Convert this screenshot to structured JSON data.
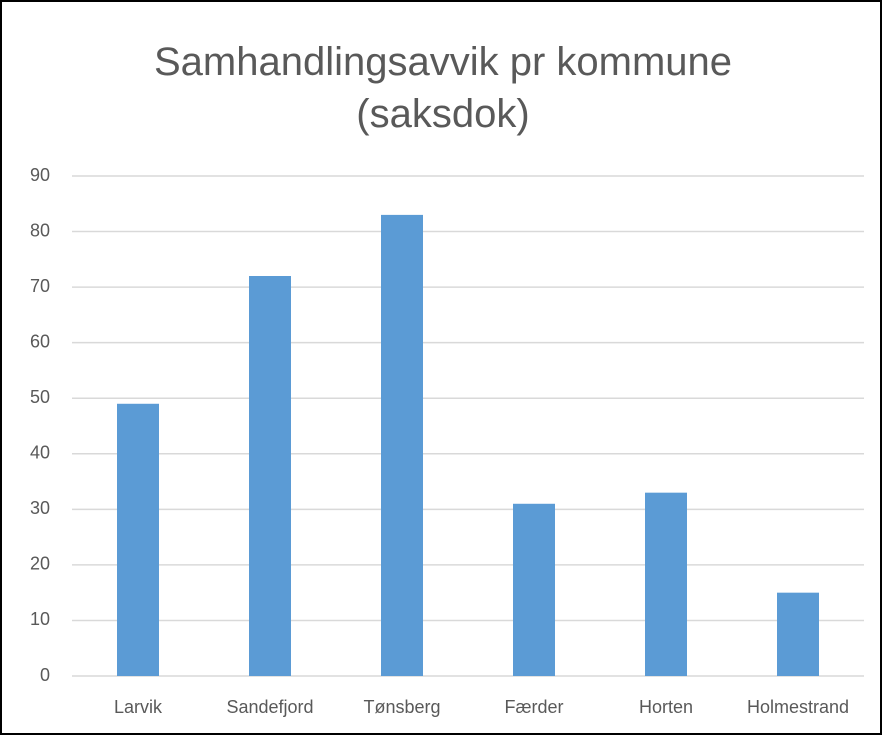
{
  "chart_data": {
    "type": "bar",
    "title": "Samhandlingsavvik pr kommune (saksdok)",
    "categories": [
      "Larvik",
      "Sandefjord",
      "Tønsberg",
      "Færder",
      "Horten",
      "Holmestrand"
    ],
    "values": [
      49,
      72,
      83,
      31,
      33,
      15
    ],
    "color": "#5b9bd5",
    "ylim": [
      0,
      90
    ],
    "yticks": [
      0,
      10,
      20,
      30,
      40,
      50,
      60,
      70,
      80,
      90
    ],
    "grid": true
  }
}
